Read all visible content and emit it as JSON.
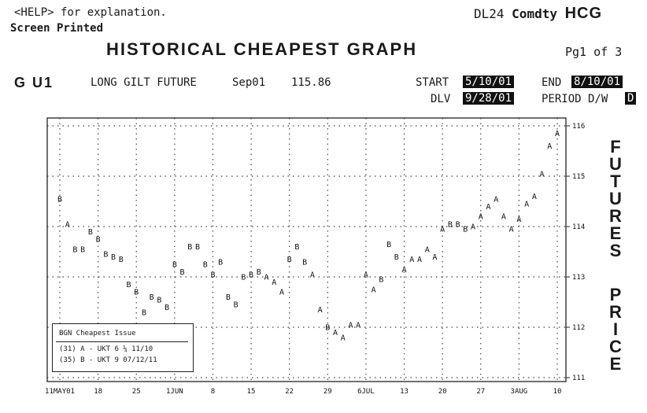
{
  "header": {
    "help_hint": "<HELP> for explanation.",
    "screen_printed": "Screen Printed",
    "code_prefix": "DL24",
    "code_comdty": "Comdty",
    "code_hcg": "HCG",
    "title": "HISTORICAL CHEAPEST GRAPH",
    "page": "Pg1 of 3"
  },
  "security": {
    "ticker": "G U1",
    "description": "LONG GILT FUTURE",
    "contract": "Sep01",
    "price": "115.86"
  },
  "fields": {
    "start_label": "START",
    "start_value": "5/10/01",
    "end_label": "END",
    "end_value": "8/10/01",
    "dlv_label": "DLV",
    "dlv_value": "9/28/01",
    "period_label": "PERIOD D/W",
    "period_value": "D"
  },
  "chart_side_label": {
    "word1": [
      "F",
      "U",
      "T",
      "U",
      "R",
      "E",
      "S"
    ],
    "word2": [
      "P",
      "R",
      "I",
      "C",
      "E"
    ]
  },
  "legend": {
    "title": "BGN Cheapest Issue",
    "items": [
      "(31) A - UKT 6 ¼ 11/10",
      "(35) B - UKT 9 07/12/11"
    ]
  },
  "chart_data": {
    "type": "scatter",
    "title": "HISTORICAL CHEAPEST GRAPH",
    "ylabel": "FUTURES PRICE",
    "x_tick_labels": [
      "11MAY01",
      "18",
      "25",
      "1JUN",
      "8",
      "15",
      "22",
      "29",
      "6JUL",
      "13",
      "20",
      "27",
      "3AUG",
      "10"
    ],
    "y_ticks": [
      111,
      112,
      113,
      114,
      115,
      116
    ],
    "ylim": [
      111,
      116
    ],
    "grid": true,
    "legend_placement": "bottom-left",
    "points": [
      {
        "d": 0,
        "y": 114.55,
        "l": "B"
      },
      {
        "d": 1,
        "y": 114.05,
        "l": "A"
      },
      {
        "d": 2,
        "y": 113.55,
        "l": "B"
      },
      {
        "d": 3,
        "y": 113.55,
        "l": "B"
      },
      {
        "d": 4,
        "y": 113.9,
        "l": "B"
      },
      {
        "d": 5,
        "y": 113.75,
        "l": "B"
      },
      {
        "d": 6,
        "y": 113.45,
        "l": "B"
      },
      {
        "d": 7,
        "y": 113.4,
        "l": "B"
      },
      {
        "d": 8,
        "y": 113.35,
        "l": "B"
      },
      {
        "d": 9,
        "y": 112.85,
        "l": "B"
      },
      {
        "d": 10,
        "y": 112.7,
        "l": "B"
      },
      {
        "d": 11,
        "y": 112.3,
        "l": "B"
      },
      {
        "d": 12,
        "y": 112.6,
        "l": "B"
      },
      {
        "d": 13,
        "y": 112.55,
        "l": "B"
      },
      {
        "d": 14,
        "y": 112.4,
        "l": "B"
      },
      {
        "d": 15,
        "y": 113.25,
        "l": "B"
      },
      {
        "d": 16,
        "y": 113.1,
        "l": "B"
      },
      {
        "d": 17,
        "y": 113.6,
        "l": "B"
      },
      {
        "d": 18,
        "y": 113.6,
        "l": "B"
      },
      {
        "d": 19,
        "y": 113.25,
        "l": "B"
      },
      {
        "d": 20,
        "y": 113.05,
        "l": "B"
      },
      {
        "d": 21,
        "y": 113.3,
        "l": "B"
      },
      {
        "d": 22,
        "y": 112.6,
        "l": "B"
      },
      {
        "d": 23,
        "y": 112.45,
        "l": "B"
      },
      {
        "d": 24,
        "y": 113.0,
        "l": "B"
      },
      {
        "d": 25,
        "y": 113.05,
        "l": "B"
      },
      {
        "d": 26,
        "y": 113.1,
        "l": "B"
      },
      {
        "d": 27,
        "y": 113.0,
        "l": "A"
      },
      {
        "d": 28,
        "y": 112.9,
        "l": "A"
      },
      {
        "d": 29,
        "y": 112.7,
        "l": "A"
      },
      {
        "d": 30,
        "y": 113.35,
        "l": "B"
      },
      {
        "d": 31,
        "y": 113.6,
        "l": "B"
      },
      {
        "d": 32,
        "y": 113.3,
        "l": "B"
      },
      {
        "d": 33,
        "y": 113.05,
        "l": "A"
      },
      {
        "d": 34,
        "y": 112.35,
        "l": "A"
      },
      {
        "d": 35,
        "y": 112.0,
        "l": "B"
      },
      {
        "d": 36,
        "y": 111.9,
        "l": "A"
      },
      {
        "d": 37,
        "y": 111.8,
        "l": "A"
      },
      {
        "d": 38,
        "y": 112.05,
        "l": "A"
      },
      {
        "d": 39,
        "y": 112.05,
        "l": "A"
      },
      {
        "d": 40,
        "y": 113.05,
        "l": "A"
      },
      {
        "d": 41,
        "y": 112.75,
        "l": "A"
      },
      {
        "d": 42,
        "y": 112.95,
        "l": "B"
      },
      {
        "d": 43,
        "y": 113.65,
        "l": "B"
      },
      {
        "d": 44,
        "y": 113.4,
        "l": "B"
      },
      {
        "d": 45,
        "y": 113.15,
        "l": "A"
      },
      {
        "d": 46,
        "y": 113.35,
        "l": "A"
      },
      {
        "d": 47,
        "y": 113.35,
        "l": "A"
      },
      {
        "d": 48,
        "y": 113.55,
        "l": "A"
      },
      {
        "d": 49,
        "y": 113.4,
        "l": "A"
      },
      {
        "d": 50,
        "y": 113.95,
        "l": "A"
      },
      {
        "d": 51,
        "y": 114.05,
        "l": "B"
      },
      {
        "d": 52,
        "y": 114.05,
        "l": "B"
      },
      {
        "d": 53,
        "y": 113.95,
        "l": "B"
      },
      {
        "d": 54,
        "y": 114.0,
        "l": "A"
      },
      {
        "d": 55,
        "y": 114.2,
        "l": "A"
      },
      {
        "d": 56,
        "y": 114.4,
        "l": "A"
      },
      {
        "d": 57,
        "y": 114.55,
        "l": "A"
      },
      {
        "d": 58,
        "y": 114.2,
        "l": "A"
      },
      {
        "d": 59,
        "y": 113.95,
        "l": "A"
      },
      {
        "d": 60,
        "y": 114.15,
        "l": "A"
      },
      {
        "d": 61,
        "y": 114.45,
        "l": "A"
      },
      {
        "d": 62,
        "y": 114.6,
        "l": "A"
      },
      {
        "d": 63,
        "y": 115.05,
        "l": "A"
      },
      {
        "d": 64,
        "y": 115.6,
        "l": "A"
      },
      {
        "d": 65,
        "y": 115.85,
        "l": "A"
      }
    ]
  }
}
